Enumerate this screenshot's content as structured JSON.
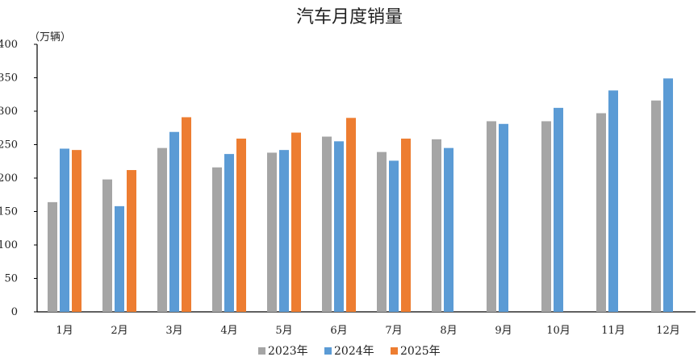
{
  "chart_data": {
    "type": "bar",
    "title": "汽车月度销量",
    "unit_label": "（万辆）",
    "xlabel": "",
    "ylabel": "",
    "ylim": [
      0,
      400
    ],
    "yticks": [
      0,
      50,
      100,
      150,
      200,
      250,
      300,
      350,
      400
    ],
    "grid": false,
    "legend_position": "bottom",
    "categories": [
      "1月",
      "2月",
      "3月",
      "4月",
      "5月",
      "6月",
      "7月",
      "8月",
      "9月",
      "10月",
      "11月",
      "12月"
    ],
    "series": [
      {
        "name": "2023年",
        "color": "#a5a5a5",
        "values": [
          164,
          198,
          245,
          216,
          238,
          262,
          239,
          258,
          285,
          285,
          297,
          316
        ]
      },
      {
        "name": "2024年",
        "color": "#5b9bd5",
        "values": [
          244,
          158,
          269,
          236,
          242,
          255,
          226,
          245,
          281,
          305,
          331,
          349
        ]
      },
      {
        "name": "2025年",
        "color": "#ed7d31",
        "values": [
          242,
          212,
          291,
          259,
          268,
          290,
          259,
          null,
          null,
          null,
          null,
          null
        ]
      }
    ]
  }
}
